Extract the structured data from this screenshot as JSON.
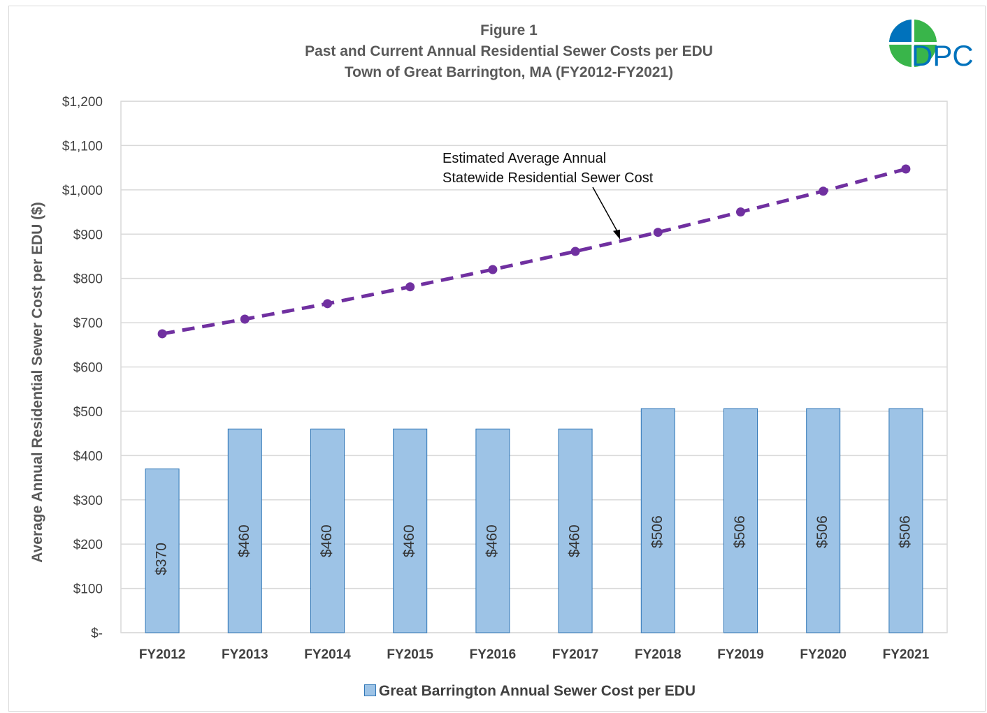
{
  "title_lines": [
    "Figure 1",
    "Past and Current Annual Residential Sewer Costs per EDU",
    "Town of Great Barrington, MA (FY2012-FY2021)"
  ],
  "logo": {
    "text": "DPC",
    "colors": [
      "#0072bc",
      "#39b54a"
    ]
  },
  "chart_data": {
    "type": "bar",
    "categories": [
      "FY2012",
      "FY2013",
      "FY2014",
      "FY2015",
      "FY2016",
      "FY2017",
      "FY2018",
      "FY2019",
      "FY2020",
      "FY2021"
    ],
    "series": [
      {
        "name": "Great Barrington Annual Sewer Cost per EDU",
        "type": "bar",
        "values": [
          370,
          460,
          460,
          460,
          460,
          460,
          506,
          506,
          506,
          506
        ],
        "labels": [
          "$370",
          "$460",
          "$460",
          "$460",
          "$460",
          "$460",
          "$506",
          "$506",
          "$506",
          "$506"
        ],
        "color": "#9dc3e6",
        "edge_color": "#2e75b6"
      },
      {
        "type": "line",
        "style": "dashed",
        "values": [
          675,
          708,
          743,
          781,
          820,
          861,
          904,
          950,
          997,
          1047
        ],
        "color": "#7030a0"
      }
    ],
    "ylabel": "Average Annual Residential Sewer Cost per EDU ($)",
    "xlabel": "",
    "ylim": [
      0,
      1200
    ],
    "yticks": [
      0,
      100,
      200,
      300,
      400,
      500,
      600,
      700,
      800,
      900,
      1000,
      1100,
      1200
    ],
    "ytick_labels": [
      "$-",
      "$100",
      "$200",
      "$300",
      "$400",
      "$500",
      "$600",
      "$700",
      "$800",
      "$900",
      "$1,000",
      "$1,100",
      "$1,200"
    ],
    "grid": true,
    "legend_position": "bottom",
    "annotation": {
      "lines": [
        "Estimated Average Annual",
        "Statewide Residential Sewer Cost"
      ],
      "points_to_value": 885
    }
  },
  "legend": {
    "label": "Great Barrington Annual Sewer Cost per EDU"
  }
}
